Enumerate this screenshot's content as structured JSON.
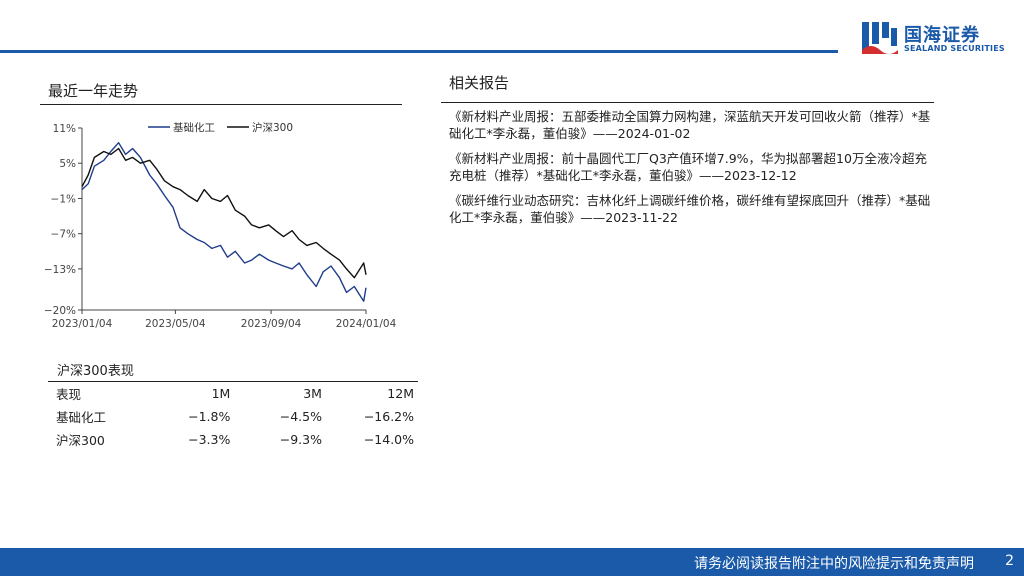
{
  "header": {
    "logo_cn": "国海证券",
    "logo_en": "SEALAND SECURITIES",
    "colors": {
      "brand": "#1a5aa8"
    }
  },
  "left": {
    "trend_title": "最近一年走势",
    "performance_title": "沪深300表现",
    "performance_table": {
      "headers": [
        "表现",
        "1M",
        "3M",
        "12M"
      ],
      "rows": [
        [
          "基础化工",
          "−1.8%",
          "−4.5%",
          "−16.2%"
        ],
        [
          "沪深300",
          "−3.3%",
          "−9.3%",
          "−14.0%"
        ]
      ]
    }
  },
  "right": {
    "reports_title": "相关报告",
    "reports": [
      "《新材料产业周报：五部委推动全国算力网构建，深蓝航天开发可回收火箭（推荐）*基础化工*李永磊，董伯骏》——2024-01-02",
      "《新材料产业周报：前十晶圆代工厂Q3产值环增7.9%，华为拟部署超10万全液冷超充充电桩（推荐）*基础化工*李永磊，董伯骏》——2023-12-12",
      "《碳纤维行业动态研究：吉林化纤上调碳纤维价格，碳纤维有望探底回升（推荐）*基础化工*李永磊，董伯骏》——2023-11-22"
    ]
  },
  "chart_data": {
    "type": "line",
    "title": "",
    "xlabel": "",
    "ylabel": "",
    "x_ticks": [
      "2023/01/04",
      "2023/05/04",
      "2023/09/04",
      "2024/01/04"
    ],
    "y_ticks": [
      "11%",
      "5%",
      "−1%",
      "−7%",
      "−13%",
      "−20%"
    ],
    "ylim": [
      -20,
      11
    ],
    "xlim": [
      "2023/01/04",
      "2024/01/04"
    ],
    "legend_position": "top",
    "grid": false,
    "series": [
      {
        "name": "基础化工",
        "color": "#1f3c8c",
        "x": [
          "2023/01/04",
          "2023/01/12",
          "2023/01/20",
          "2023/02/01",
          "2023/02/10",
          "2023/02/20",
          "2023/03/01",
          "2023/03/10",
          "2023/03/20",
          "2023/04/01",
          "2023/04/10",
          "2023/04/20",
          "2023/05/01",
          "2023/05/10",
          "2023/05/20",
          "2023/06/01",
          "2023/06/10",
          "2023/06/20",
          "2023/07/01",
          "2023/07/10",
          "2023/07/20",
          "2023/08/01",
          "2023/08/10",
          "2023/08/20",
          "2023/09/01",
          "2023/09/10",
          "2023/09/20",
          "2023/10/01",
          "2023/10/10",
          "2023/10/20",
          "2023/11/01",
          "2023/11/10",
          "2023/11/20",
          "2023/12/01",
          "2023/12/10",
          "2023/12/20",
          "2024/01/01",
          "2024/01/04"
        ],
        "values": [
          0.5,
          1.5,
          4.5,
          5.5,
          7.0,
          8.5,
          6.5,
          7.5,
          6.0,
          3.0,
          1.5,
          -0.5,
          -2.5,
          -6.0,
          -7.0,
          -8.0,
          -8.5,
          -9.5,
          -9.0,
          -11.0,
          -10.0,
          -12.0,
          -11.5,
          -10.5,
          -11.5,
          -12.0,
          -12.5,
          -13.0,
          -12.0,
          -14.0,
          -16.0,
          -13.5,
          -12.5,
          -14.5,
          -17.0,
          -16.0,
          -18.5,
          -16.2
        ]
      },
      {
        "name": "沪深300",
        "color": "#111111",
        "x": [
          "2023/01/04",
          "2023/01/12",
          "2023/01/20",
          "2023/02/01",
          "2023/02/10",
          "2023/02/20",
          "2023/03/01",
          "2023/03/10",
          "2023/03/20",
          "2023/04/01",
          "2023/04/10",
          "2023/04/20",
          "2023/05/01",
          "2023/05/10",
          "2023/05/20",
          "2023/06/01",
          "2023/06/10",
          "2023/06/20",
          "2023/07/01",
          "2023/07/10",
          "2023/07/20",
          "2023/08/01",
          "2023/08/10",
          "2023/08/20",
          "2023/09/01",
          "2023/09/10",
          "2023/09/20",
          "2023/10/01",
          "2023/10/10",
          "2023/10/20",
          "2023/11/01",
          "2023/11/10",
          "2023/11/20",
          "2023/12/01",
          "2023/12/10",
          "2023/12/20",
          "2024/01/01",
          "2024/01/04"
        ],
        "values": [
          1.0,
          3.0,
          6.0,
          7.0,
          6.5,
          7.5,
          5.5,
          6.0,
          5.0,
          5.5,
          4.0,
          2.0,
          1.0,
          0.5,
          -0.5,
          -1.5,
          0.5,
          -1.0,
          -1.5,
          -0.5,
          -3.0,
          -4.0,
          -5.5,
          -6.0,
          -5.5,
          -6.5,
          -7.5,
          -6.5,
          -8.0,
          -9.0,
          -8.5,
          -9.5,
          -10.5,
          -11.5,
          -13.0,
          -14.5,
          -12.0,
          -14.0
        ]
      }
    ]
  },
  "footer": {
    "disclaimer": "请务必阅读报告附注中的风险提示和免责声明",
    "page_number": "2"
  }
}
